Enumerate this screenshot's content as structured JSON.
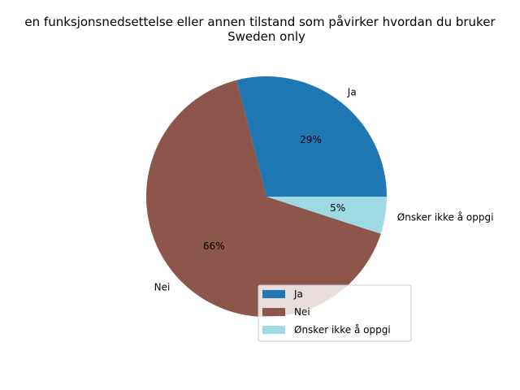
{
  "chart_data": {
    "type": "pie",
    "title": "en funksjonsnedsettelse eller annen tilstand som påvirker hvordan du bruker",
    "subtitle": "Sweden only",
    "categories": [
      "Ja",
      "Nei",
      "Ønsker ikke å oppgi"
    ],
    "values": [
      29,
      66,
      5
    ],
    "value_labels": [
      "29%",
      "66%",
      "5%"
    ],
    "colors": [
      "#1f77b4",
      "#8c564b",
      "#9edae5"
    ],
    "start_angle_deg": 0,
    "legend": {
      "placement": "lower-right",
      "entries": [
        "Ja",
        "Nei",
        "Ønsker ikke å oppgi"
      ]
    }
  }
}
